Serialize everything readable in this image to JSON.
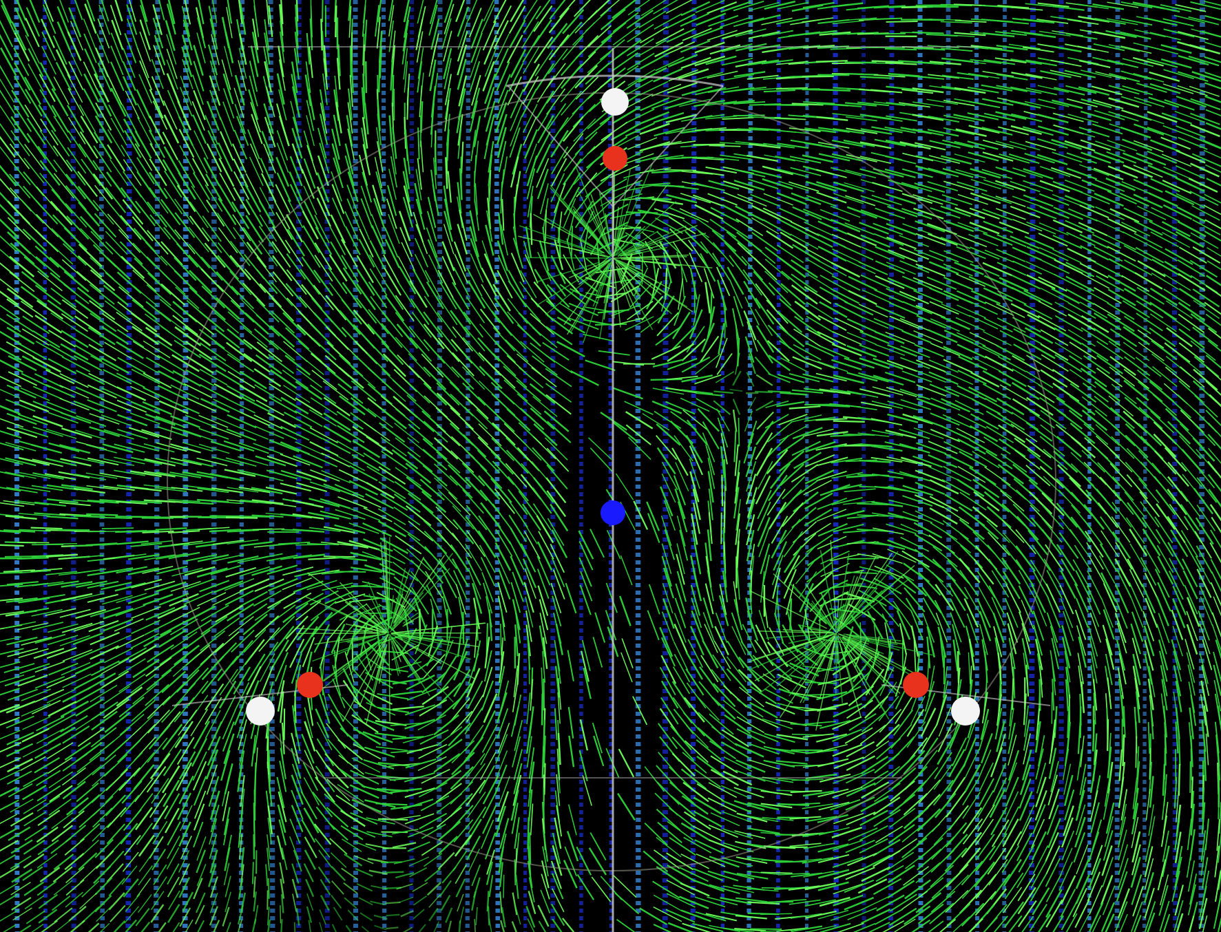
{
  "scene": {
    "description_name": "vector-field-visualization",
    "colors": {
      "background": "#000000",
      "field_green": "#2fd43a",
      "field_green_bright": "#6dff5a",
      "field_blue": "#1a2fd8",
      "field_blue_light": "#3a8fe8",
      "guide_gray": "#9a9a8a",
      "guide_white": "#d8d8d8",
      "marker_white": "#f4f4f4",
      "marker_red": "#e8321e",
      "marker_blue": "#1a1aff"
    },
    "markers": [
      {
        "name": "top-white-marker",
        "kind": "white"
      },
      {
        "name": "top-red-marker",
        "kind": "red"
      },
      {
        "name": "center-blue-marker",
        "kind": "blue"
      },
      {
        "name": "left-red-marker",
        "kind": "red"
      },
      {
        "name": "left-white-marker",
        "kind": "white"
      },
      {
        "name": "right-red-marker",
        "kind": "red"
      },
      {
        "name": "right-white-marker",
        "kind": "white"
      }
    ],
    "sources": [
      {
        "name": "top-field-source"
      },
      {
        "name": "left-field-source"
      },
      {
        "name": "right-field-source"
      }
    ]
  }
}
